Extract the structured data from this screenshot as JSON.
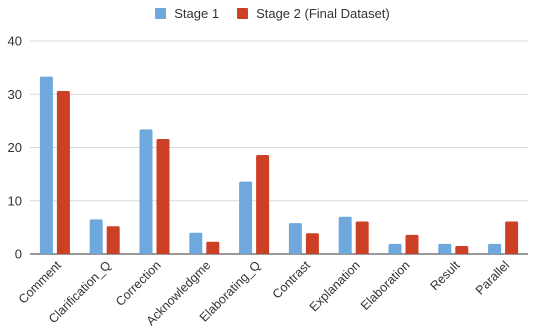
{
  "chart_data": {
    "type": "bar",
    "title": "",
    "xlabel": "",
    "ylabel": "",
    "categories": [
      "Comment",
      "Clarification_Q",
      "Correction",
      "Acknowledgme",
      "Elaborating_Q",
      "Contrast",
      "Explanation",
      "Elaboration",
      "Result",
      "Parallel"
    ],
    "series": [
      {
        "name": "Stage 1",
        "color": "#6fa8dc",
        "values": [
          33.3,
          6.5,
          23.4,
          4.0,
          13.6,
          5.8,
          7.0,
          1.9,
          1.9,
          1.9
        ]
      },
      {
        "name": "Stage 2 (Final Dataset)",
        "color": "#cc4125",
        "values": [
          30.6,
          5.2,
          21.6,
          2.3,
          18.6,
          3.9,
          6.1,
          3.6,
          1.5,
          6.1
        ]
      }
    ],
    "ylim": [
      0,
      40
    ],
    "yticks": [
      0,
      10,
      20,
      30,
      40
    ],
    "grid": true,
    "legend_position": "top-center"
  }
}
